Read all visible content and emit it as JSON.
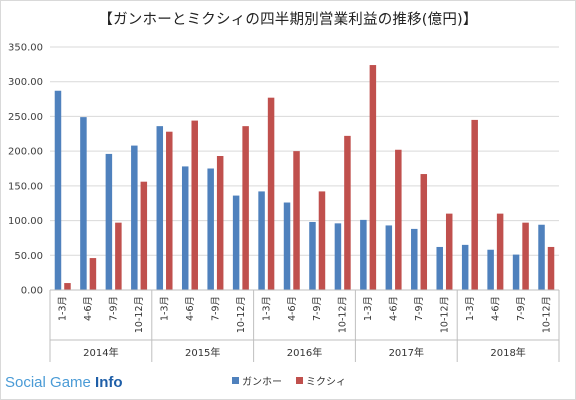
{
  "title": "【ガンホーとミクシィの四半期別営業利益の推移(億円)】",
  "logo": {
    "text": "Social Game ",
    "bold": "Info"
  },
  "colors": {
    "gungho": "#4f81bd",
    "mixi": "#c0504d",
    "grid": "#d9d9d9"
  },
  "chart_data": {
    "type": "bar",
    "title": "【ガンホーとミクシィの四半期別営業利益の推移(億円)】",
    "ylim": [
      0,
      350
    ],
    "yticks": [
      "0.00",
      "50.00",
      "100.00",
      "150.00",
      "200.00",
      "250.00",
      "300.00",
      "350.00"
    ],
    "grid": true,
    "legend_position": "bottom",
    "categories": [
      "1-3月",
      "4-6月",
      "7-9月",
      "10-12月",
      "1-3月",
      "4-6月",
      "7-9月",
      "10-12月",
      "1-3月",
      "4-6月",
      "7-9月",
      "10-12月",
      "1-3月",
      "4-6月",
      "7-9月",
      "10-12月",
      "1-3月",
      "4-6月",
      "7-9月",
      "10-12月"
    ],
    "groups": [
      "2014年",
      "2015年",
      "2016年",
      "2017年",
      "2018年"
    ],
    "series": [
      {
        "name": "ガンホー",
        "values": [
          287,
          249,
          196,
          208,
          236,
          178,
          175,
          136,
          142,
          126,
          98,
          96,
          101,
          93,
          88,
          62,
          65,
          58,
          51,
          94
        ]
      },
      {
        "name": "ミクシィ",
        "values": [
          10,
          46,
          97,
          156,
          228,
          244,
          193,
          236,
          277,
          200,
          142,
          222,
          324,
          202,
          167,
          110,
          245,
          110,
          97,
          62
        ]
      }
    ]
  }
}
